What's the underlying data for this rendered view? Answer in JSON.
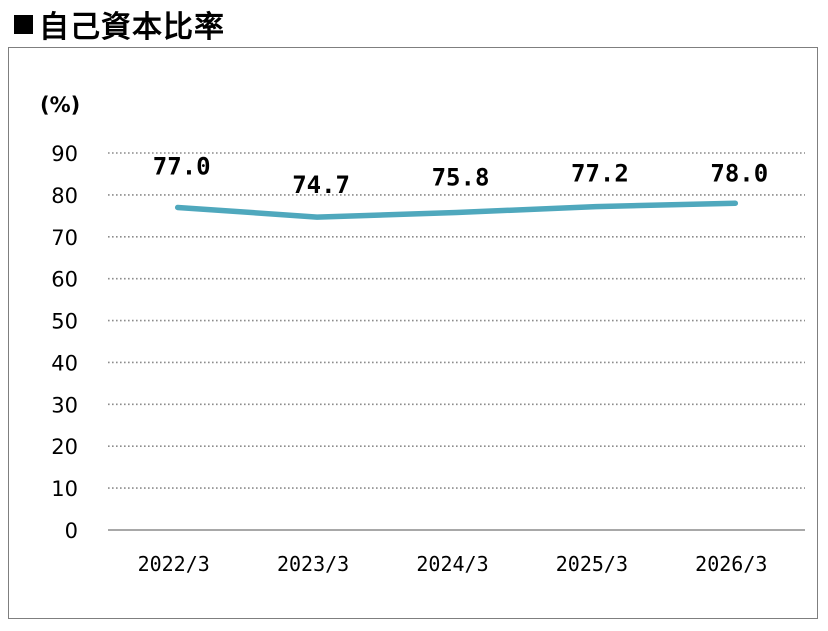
{
  "heading": {
    "marker": "■",
    "title": "自己資本比率"
  },
  "chart_data": {
    "type": "line",
    "title": "自己資本比率",
    "unit_label": "(%)",
    "categories": [
      "2022/3",
      "2023/3",
      "2024/3",
      "2025/3",
      "2026/3"
    ],
    "series": [
      {
        "values": [
          77.0,
          74.7,
          75.8,
          77.2,
          78.0
        ],
        "color": "#4fa8bd"
      }
    ],
    "data_labels": [
      "77.0",
      "74.7",
      "75.8",
      "77.2",
      "78.0"
    ],
    "ylim": [
      0,
      90
    ],
    "yticks": [
      0,
      10,
      20,
      30,
      40,
      50,
      60,
      70,
      80,
      90
    ],
    "grid": true,
    "grid_style": "dotted",
    "legend": "none"
  }
}
